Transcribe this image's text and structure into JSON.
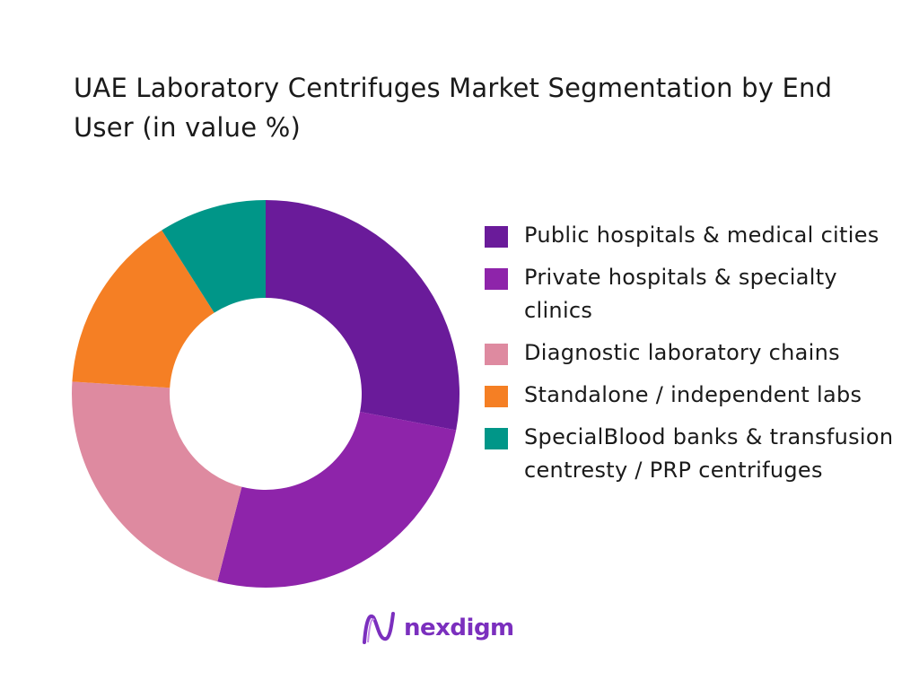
{
  "chart_data": {
    "type": "pie",
    "variant": "donut",
    "title": "UAE Laboratory Centrifuges Market Segmentation by End User (in value %)",
    "categories": [
      "Public hospitals & medical cities",
      "Private hospitals & specialty clinics",
      "Diagnostic laboratory chains",
      "Standalone / independent labs",
      "SpecialBlood banks & transfusion centresty / PRP centrifuges"
    ],
    "values": [
      28,
      26,
      22,
      15,
      9
    ],
    "colors": [
      "#6A1B9A",
      "#8E24AA",
      "#DE8AA0",
      "#F57F24",
      "#009688"
    ],
    "legend_position": "right",
    "start_angle": "top, clockwise"
  },
  "logo": {
    "text": "nexdigm"
  }
}
